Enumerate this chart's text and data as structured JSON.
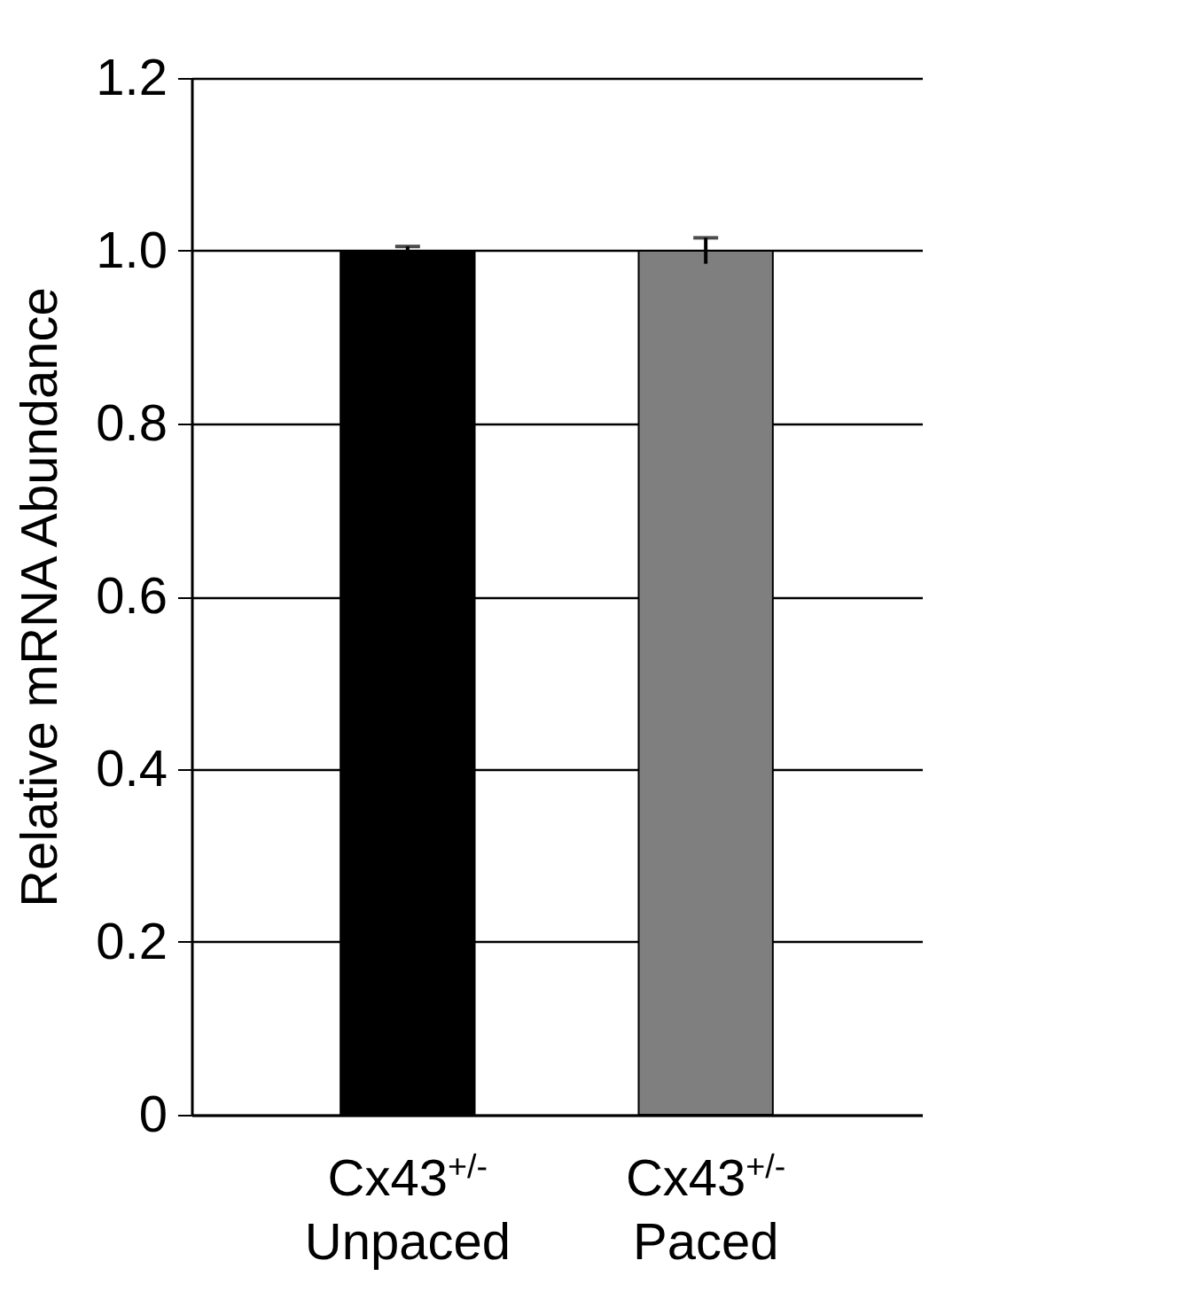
{
  "chart_data": {
    "type": "bar",
    "ylabel": "Relative mRNA Abundance",
    "categories": [
      "Cx43$^{+/-}$\nUnpaced",
      "Cx43$^{+/-}$\nPaced"
    ],
    "values": [
      1.0,
      1.0
    ],
    "errors": [
      0.005,
      0.015
    ],
    "colors": [
      "#000000",
      "#7f7f7f"
    ],
    "ylim": [
      0,
      1.2
    ],
    "yticks": [
      0,
      0.2,
      0.4,
      0.6,
      0.8,
      {
        "value": 1,
        "label": "1.0"
      },
      1.2
    ],
    "grid": "y"
  }
}
